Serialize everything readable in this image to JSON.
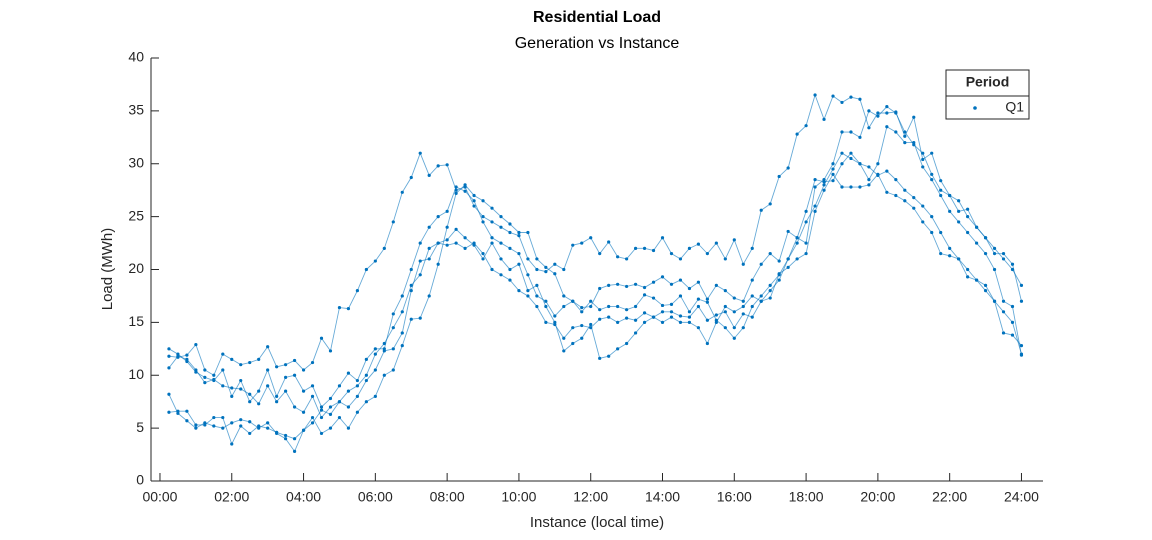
{
  "chart_data": {
    "type": "line",
    "title": "Residential Load",
    "subtitle": "Generation vs Instance",
    "x_label": "Instance (local time)",
    "y_label": "Load (MWh)",
    "legend_title": "Period",
    "legend_location": "northeast",
    "xlim": [
      -0.25,
      24.6
    ],
    "ylim": [
      0,
      40
    ],
    "xticks": [
      {
        "value": 0,
        "label": "00:00"
      },
      {
        "value": 2,
        "label": "02:00"
      },
      {
        "value": 4,
        "label": "04:00"
      },
      {
        "value": 6,
        "label": "06:00"
      },
      {
        "value": 8,
        "label": "08:00"
      },
      {
        "value": 10,
        "label": "10:00"
      },
      {
        "value": 12,
        "label": "12:00"
      },
      {
        "value": 14,
        "label": "14:00"
      },
      {
        "value": 16,
        "label": "16:00"
      },
      {
        "value": 18,
        "label": "18:00"
      },
      {
        "value": 20,
        "label": "20:00"
      },
      {
        "value": 22,
        "label": "22:00"
      },
      {
        "value": 24,
        "label": "24:00"
      }
    ],
    "yticks": [
      0,
      5,
      10,
      15,
      20,
      25,
      30,
      35,
      40
    ],
    "x": [
      0.25,
      0.5,
      0.75,
      1,
      1.25,
      1.5,
      1.75,
      2,
      2.25,
      2.5,
      2.75,
      3,
      3.25,
      3.5,
      3.75,
      4,
      4.25,
      4.5,
      4.75,
      5,
      5.25,
      5.5,
      5.75,
      6,
      6.25,
      6.5,
      6.75,
      7,
      7.25,
      7.5,
      7.75,
      8,
      8.25,
      8.5,
      8.75,
      9,
      9.25,
      9.5,
      9.75,
      10,
      10.25,
      10.5,
      10.75,
      11,
      11.25,
      11.5,
      11.75,
      12,
      12.25,
      12.5,
      12.75,
      13,
      13.25,
      13.5,
      13.75,
      14,
      14.25,
      14.5,
      14.75,
      15,
      15.25,
      15.5,
      15.75,
      16,
      16.25,
      16.5,
      16.75,
      17,
      17.25,
      17.5,
      17.75,
      18,
      18.25,
      18.5,
      18.75,
      19,
      19.25,
      19.5,
      19.75,
      20,
      20.25,
      20.5,
      20.75,
      21,
      21.25,
      21.5,
      21.75,
      22,
      22.25,
      22.5,
      22.75,
      23,
      23.25,
      23.5,
      23.75,
      24
    ],
    "series": [
      {
        "name": "Q1",
        "color": "#0072bd",
        "values": [
          11.8,
          11.7,
          11.9,
          12.9,
          10.5,
          10.0,
          12.0,
          11.5,
          11.0,
          11.2,
          11.5,
          12.7,
          10.8,
          11.0,
          11.4,
          10.5,
          11.2,
          13.5,
          12.3,
          16.4,
          16.3,
          18.0,
          20.0,
          20.8,
          22.0,
          24.5,
          27.3,
          28.7,
          31.0,
          28.9,
          29.8,
          29.9,
          27.5,
          27.8,
          26.0,
          25.0,
          24.5,
          24.0,
          23.5,
          23.2,
          21.0,
          20.0,
          19.8,
          20.5,
          20.0,
          22.3,
          22.5,
          23.0,
          21.5,
          22.6,
          21.2,
          21.0,
          22.0,
          22.0,
          21.8,
          23.0,
          21.5,
          21.0,
          22.0,
          22.4,
          21.5,
          22.5,
          21.0,
          22.8,
          20.5,
          22.0,
          25.6,
          26.2,
          28.8,
          29.6,
          32.8,
          33.6,
          36.5,
          34.2,
          36.4,
          35.8,
          36.3,
          36.1,
          33.4,
          34.8,
          34.8,
          34.9,
          32.6,
          34.4,
          30.4,
          31.0,
          28.4,
          27.0,
          25.5,
          25.7,
          24.0,
          23.0,
          21.5,
          21.5,
          20.5,
          17.0
        ]
      },
      {
        "color": "#0072bd",
        "values": [
          6.5,
          6.6,
          6.6,
          5.3,
          5.3,
          6.0,
          6.0,
          3.5,
          5.2,
          4.5,
          5.2,
          5.0,
          4.6,
          4.3,
          4.0,
          4.8,
          5.5,
          6.7,
          6.3,
          7.5,
          7.0,
          8.0,
          9.5,
          10.5,
          12.3,
          12.5,
          14.0,
          18.0,
          20.8,
          21.0,
          22.5,
          22.3,
          22.5,
          22.0,
          22.5,
          21.5,
          20.0,
          19.5,
          19.0,
          18.0,
          17.5,
          16.5,
          15.0,
          14.8,
          13.5,
          14.5,
          14.7,
          14.5,
          15.3,
          15.5,
          15.0,
          15.4,
          15.2,
          15.9,
          15.5,
          16.0,
          16.0,
          15.6,
          15.5,
          16.5,
          15.2,
          15.7,
          16.0,
          14.5,
          15.8,
          15.5,
          17.0,
          17.3,
          19.6,
          20.2,
          21.0,
          21.5,
          25.5,
          27.5,
          29.0,
          27.8,
          27.8,
          27.8,
          28.0,
          29.0,
          27.3,
          27.0,
          26.5,
          25.8,
          24.5,
          23.5,
          21.5,
          21.3,
          21.0,
          19.3,
          19.0,
          18.0,
          17.0,
          14.0,
          13.8,
          12.8
        ]
      },
      {
        "color": "#0072bd",
        "values": [
          8.2,
          6.4,
          5.7,
          5.0,
          5.5,
          5.2,
          5.0,
          5.5,
          5.8,
          5.6,
          5.0,
          5.5,
          4.5,
          4.0,
          2.8,
          4.8,
          6.0,
          4.5,
          5.0,
          6.0,
          5.0,
          6.5,
          7.5,
          8.0,
          10.0,
          10.5,
          12.8,
          15.3,
          15.4,
          17.5,
          20.5,
          24.0,
          27.2,
          28.0,
          27.0,
          26.5,
          25.8,
          25.0,
          24.3,
          23.5,
          23.5,
          21.0,
          20.2,
          19.6,
          17.5,
          17.0,
          16.4,
          16.5,
          18.2,
          18.5,
          18.6,
          18.4,
          18.6,
          18.3,
          18.8,
          19.3,
          18.6,
          19.0,
          18.2,
          18.8,
          17.2,
          18.5,
          18.0,
          17.3,
          17.0,
          19.0,
          20.5,
          21.5,
          20.8,
          23.6,
          23.0,
          25.5,
          28.5,
          28.3,
          28.4,
          30.0,
          31.0,
          30.0,
          28.5,
          30.0,
          33.5,
          33.0,
          32.0,
          32.0,
          29.7,
          28.5,
          27.0,
          25.5,
          24.5,
          23.5,
          22.5,
          21.5,
          20.0,
          17.0,
          16.5,
          11.9
        ]
      },
      {
        "color": "#0072bd",
        "values": [
          12.5,
          12.0,
          11.3,
          10.3,
          9.8,
          9.5,
          10.5,
          8.0,
          9.5,
          7.5,
          8.5,
          10.5,
          8.0,
          9.8,
          10.0,
          8.5,
          9.0,
          7.0,
          7.8,
          9.0,
          10.2,
          9.5,
          11.5,
          12.5,
          12.5,
          15.8,
          17.5,
          20.0,
          22.5,
          24.0,
          25.0,
          25.5,
          27.8,
          27.4,
          26.5,
          24.5,
          23.0,
          22.5,
          22.0,
          21.5,
          19.5,
          17.5,
          17.0,
          15.6,
          16.5,
          17.0,
          16.0,
          17.0,
          16.2,
          16.5,
          16.5,
          16.2,
          16.5,
          17.6,
          17.3,
          16.6,
          16.7,
          17.5,
          16.0,
          17.2,
          16.9,
          15.2,
          14.5,
          13.5,
          14.5,
          16.5,
          17.5,
          18.5,
          19.5,
          21.0,
          23.0,
          22.5,
          27.8,
          28.5,
          30.0,
          33.0,
          33.0,
          32.5,
          35.0,
          34.5,
          35.4,
          34.8,
          33.0,
          31.8,
          31.0,
          29.0,
          27.5,
          27.0,
          26.5,
          25.0,
          24.0,
          23.0,
          22.0,
          21.0,
          20.0,
          18.5
        ]
      },
      {
        "color": "#0072bd",
        "values": [
          10.7,
          11.8,
          11.5,
          10.5,
          9.3,
          9.6,
          9.0,
          8.8,
          8.7,
          8.2,
          7.3,
          9.0,
          7.5,
          8.5,
          7.0,
          6.5,
          8.0,
          6.0,
          7.0,
          7.5,
          8.5,
          9.0,
          10.0,
          12.0,
          13.0,
          14.5,
          16.0,
          18.5,
          19.5,
          22.0,
          22.5,
          22.8,
          23.8,
          23.0,
          22.3,
          21.0,
          22.5,
          21.0,
          20.0,
          20.5,
          18.0,
          18.5,
          16.5,
          15.0,
          12.3,
          13.0,
          13.5,
          14.8,
          11.6,
          11.8,
          12.5,
          13.0,
          14.0,
          15.0,
          15.5,
          15.0,
          15.5,
          15.0,
          15.0,
          14.5,
          13.0,
          15.0,
          16.5,
          16.0,
          16.5,
          17.5,
          17.0,
          18.0,
          19.0,
          21.0,
          22.5,
          24.5,
          26.0,
          28.0,
          29.5,
          31.0,
          30.5,
          30.0,
          29.7,
          28.9,
          29.3,
          28.5,
          27.5,
          26.8,
          26.0,
          25.0,
          23.5,
          22.0,
          21.0,
          20.0,
          19.0,
          18.5,
          17.0,
          16.0,
          15.0,
          12.0
        ]
      }
    ]
  }
}
